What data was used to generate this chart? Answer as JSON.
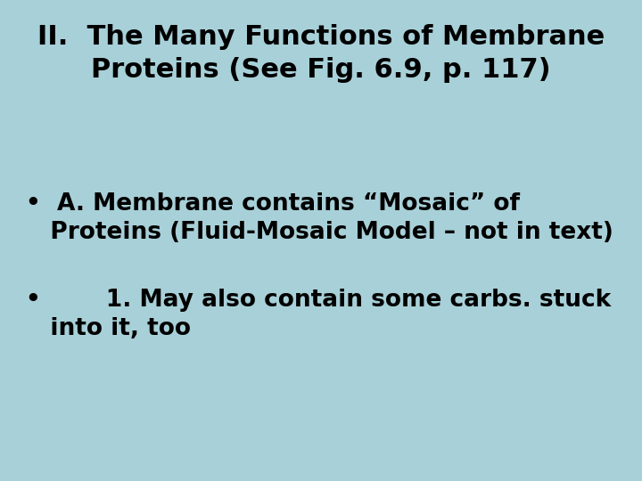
{
  "background_color": "#a8d0d8",
  "title_line1": "II.  The Many Functions of Membrane",
  "title_line2": "Proteins (See Fig. 6.9, p. 117)",
  "title_fontsize": 22,
  "title_color": "#000000",
  "bullet1_line1": "A. Membrane contains “Mosaic” of",
  "bullet1_line2": "Proteins (Fluid-Mosaic Model – not in text)",
  "bullet2_line1": "      1. May also contain some carbs. stuck",
  "bullet2_line2": "into it, too",
  "bullet_fontsize": 19,
  "bullet_color": "#000000",
  "font_family": "DejaVu Sans"
}
